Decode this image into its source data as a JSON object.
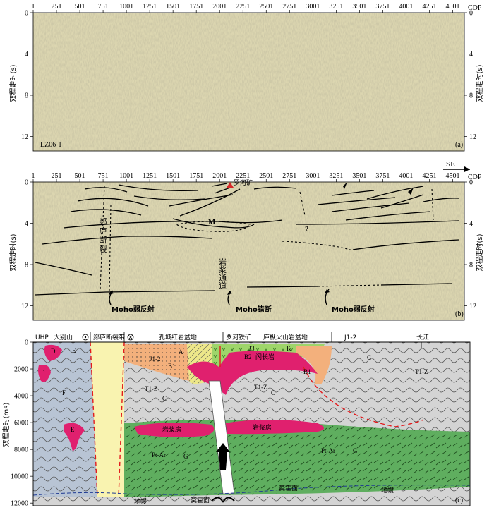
{
  "cdp_ticks": [
    "1",
    "251",
    "501",
    "751",
    "1001",
    "1251",
    "1501",
    "1751",
    "2001",
    "2251",
    "2501",
    "2751",
    "3001",
    "3251",
    "3501",
    "3751",
    "4001",
    "4251",
    "4501"
  ],
  "cdp_label": "CDP",
  "time_ticks_s": [
    "0",
    "4",
    "8",
    "12"
  ],
  "time_label_s": "双程走时(s)",
  "time_ticks_ms": [
    "0",
    "2000",
    "4000",
    "6000",
    "8000",
    "10000",
    "12000"
  ],
  "time_label_ms": "双程走时(ms)",
  "panel_a": {
    "line_id": "LZ06-1",
    "tag": "(a)"
  },
  "panel_b": {
    "tag": "(b)",
    "direction": "SE",
    "mine": "罗河矿",
    "marker_m": "M",
    "marker_q": "?",
    "fault": "郯庐断裂",
    "magma": "岩浆通道",
    "moho_weak_left": "Moho弱反射",
    "moho_offset": "Moho错断",
    "moho_weak_right": "Moho弱反射"
  },
  "panel_c": {
    "tag": "(c)",
    "top_labels": {
      "uhp": "UHP",
      "dabie": "大别山",
      "tanlu": "郯庐断裂带",
      "kongcheng": "孔城红岩盆地",
      "luohe": "罗河铁矿",
      "lujiang": "庐枞火山岩盆地",
      "j12": "J1-2",
      "yangtze": "长江"
    },
    "units": {
      "D": "D",
      "E": "E",
      "F": "F",
      "A": "A",
      "J12": "J1-2",
      "B1": "B1",
      "B2": "B2",
      "B3": "B3",
      "K": "K",
      "TZ_left": "T1-Z",
      "TZ_mid": "T1-Z",
      "TZ_right": "T1-Z",
      "C_left": "C",
      "C_mid": "C",
      "C_right": "C",
      "PtAr_left": "Pt-Ar",
      "PtAr_right": "Pt-Ar",
      "G_left": "G",
      "G_right": "G",
      "diorite": "闪长岩",
      "magma_left": "岩浆房",
      "magma_right": "岩浆房"
    },
    "moho_left": "莫霍面",
    "moho_right": "莫霍面",
    "mantle_left": "地幔",
    "mantle_right": "地幔"
  },
  "colors": {
    "seismic_base": "#dcd6b0",
    "seismic_dark": "#8c845c",
    "upper_crust": "#d4d4d4",
    "lower_crust": "#5fae5f",
    "magma": "#e0206e",
    "fault_zone": "#f9f3b0",
    "orange": "#f3b07c",
    "yellow": "#ede78a",
    "green_light": "#9ed56a",
    "blue_grey": "#b8c4d4",
    "red_dash": "#e31a1c"
  }
}
